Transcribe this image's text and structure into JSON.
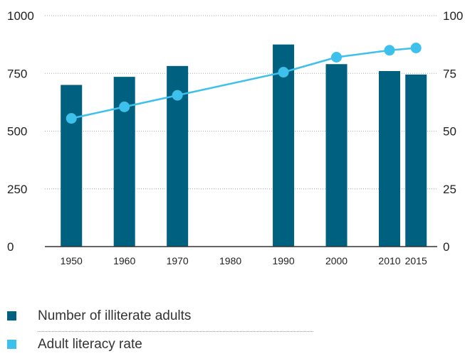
{
  "chart_data": {
    "type": "bar+line",
    "categories": [
      "1950",
      "1960",
      "1970",
      "1980",
      "1990",
      "2000",
      "2010",
      "2015"
    ],
    "x": [
      1950,
      1960,
      1970,
      1980,
      1990,
      2000,
      2010,
      2015
    ],
    "series": [
      {
        "name": "Number of illiterate adults",
        "type": "bar",
        "axis": "left",
        "color": "#006080",
        "x": [
          1950,
          1960,
          1970,
          1990,
          2000,
          2010,
          2015
        ],
        "values": [
          700,
          735,
          782,
          875,
          790,
          760,
          745
        ]
      },
      {
        "name": "Adult literacy rate",
        "type": "line",
        "axis": "right",
        "color": "#3ec0ec",
        "x": [
          1950,
          1960,
          1970,
          1990,
          2000,
          2010,
          2015
        ],
        "values": [
          55.5,
          60.5,
          65.5,
          75.5,
          82,
          85,
          86
        ]
      }
    ],
    "y_left": {
      "ylim": [
        0,
        1000
      ],
      "ticks": [
        "0",
        "250",
        "500",
        "750",
        "1000"
      ]
    },
    "y_right": {
      "ylim": [
        0,
        100
      ],
      "ticks": [
        "0",
        "25",
        "50",
        "75",
        "100"
      ]
    },
    "grid": "dotted horizontal",
    "legend_position": "bottom-left"
  },
  "legend": {
    "items": [
      {
        "label": "Number of illiterate adults",
        "color": "#006080"
      },
      {
        "label": "Adult literacy rate",
        "color": "#3ec0ec"
      }
    ]
  }
}
